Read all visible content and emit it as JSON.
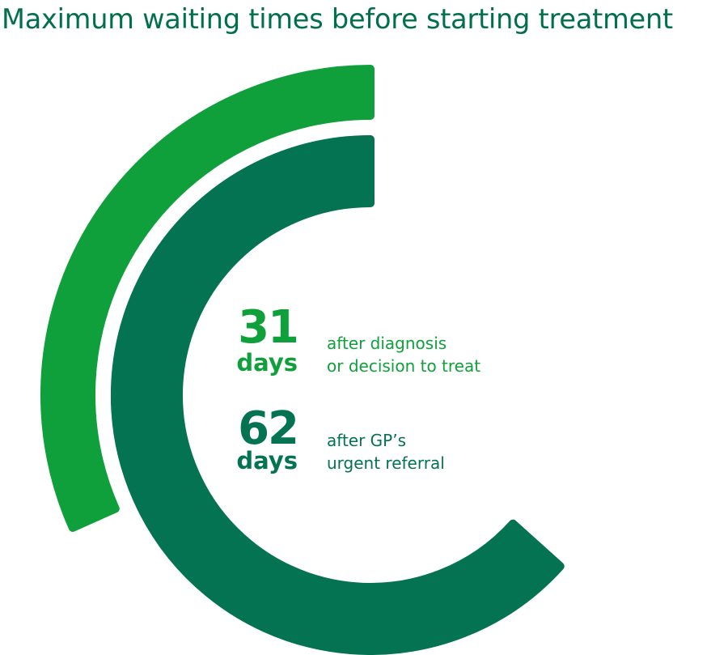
{
  "title": "Maximum waiting times before starting treatment",
  "colors": {
    "title": "#00704a",
    "light_green": "#0fa03c",
    "dark_green": "#037352",
    "background": "#ffffff"
  },
  "chart_data": {
    "type": "radial-bar",
    "title": "Maximum waiting times before starting treatment",
    "unit": "days",
    "series": [
      {
        "value": 31,
        "unit": "days",
        "description_lines": [
          "after diagnosis",
          "or decision to treat"
        ],
        "color": "#0fa03c"
      },
      {
        "value": 62,
        "unit": "days",
        "description_lines": [
          "after GP’s",
          "urgent referral"
        ],
        "color": "#037352"
      }
    ]
  }
}
